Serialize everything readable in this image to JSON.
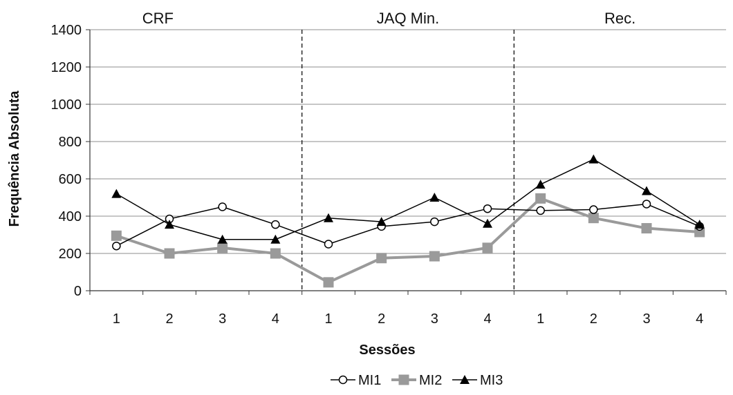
{
  "chart_data": {
    "type": "line",
    "title": "",
    "xlabel": "Sessões",
    "ylabel": "Frequência Absoluta",
    "ylim": [
      0,
      1400
    ],
    "yticks": [
      0,
      200,
      400,
      600,
      800,
      1000,
      1200,
      1400
    ],
    "categories": [
      "1",
      "2",
      "3",
      "4",
      "1",
      "2",
      "3",
      "4",
      "1",
      "2",
      "3",
      "4"
    ],
    "phases": [
      {
        "label": "CRF",
        "start": 0,
        "end": 3
      },
      {
        "label": "JAQ Min.",
        "start": 4,
        "end": 7
      },
      {
        "label": "Rec.",
        "start": 8,
        "end": 11
      }
    ],
    "grid": true,
    "legend_position": "bottom",
    "series": [
      {
        "name": "MI1",
        "marker": "open-circle",
        "color": "#000000",
        "values": [
          240,
          385,
          450,
          355,
          250,
          345,
          370,
          440,
          430,
          435,
          465,
          345
        ]
      },
      {
        "name": "MI2",
        "marker": "square",
        "color": "#9a9a9a",
        "values": [
          295,
          200,
          230,
          200,
          45,
          175,
          185,
          230,
          495,
          390,
          335,
          315
        ]
      },
      {
        "name": "MI3",
        "marker": "triangle",
        "color": "#000000",
        "values": [
          520,
          355,
          275,
          275,
          390,
          370,
          500,
          360,
          570,
          705,
          535,
          355
        ]
      }
    ]
  }
}
